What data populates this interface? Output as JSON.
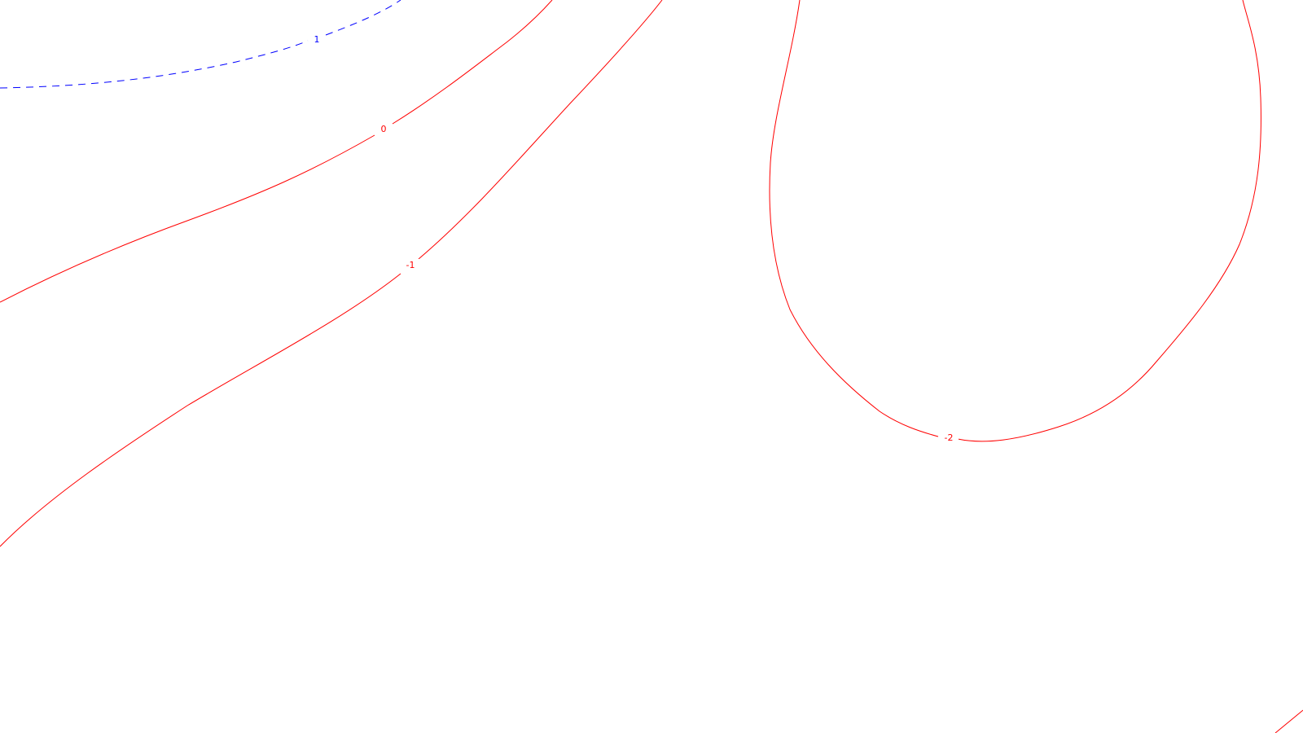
{
  "colors": {
    "background": "#ffffff",
    "positive_contour": "#0000ff",
    "zero_negative_contour": "#ff0000"
  },
  "contours": [
    {
      "level": "1",
      "label": "1",
      "color": "#0000ff",
      "style": "dashed"
    },
    {
      "level": "0",
      "label": "0",
      "color": "#ff0000",
      "style": "solid"
    },
    {
      "level": "-1",
      "label": "-1",
      "color": "#ff0000",
      "style": "solid"
    },
    {
      "level": "-2",
      "label": "-2",
      "color": "#ff0000",
      "style": "solid"
    }
  ]
}
